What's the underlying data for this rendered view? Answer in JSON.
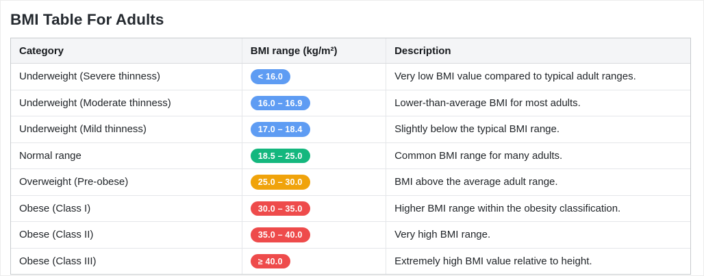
{
  "page": {
    "title": "BMI Table For Adults"
  },
  "table": {
    "columns": [
      "Category",
      "BMI range (kg/m²)",
      "Description"
    ],
    "rows": [
      {
        "category": "Underweight (Severe thinness)",
        "range": "< 16.0",
        "color": "blue",
        "description": "Very low BMI value compared to typical adult ranges."
      },
      {
        "category": "Underweight (Moderate thinness)",
        "range": "16.0 – 16.9",
        "color": "blue",
        "description": "Lower-than-average BMI for most adults."
      },
      {
        "category": "Underweight (Mild thinness)",
        "range": "17.0 – 18.4",
        "color": "blue",
        "description": "Slightly below the typical BMI range."
      },
      {
        "category": "Normal range",
        "range": "18.5 – 25.0",
        "color": "green",
        "description": "Common BMI range for many adults."
      },
      {
        "category": "Overweight (Pre-obese)",
        "range": "25.0 – 30.0",
        "color": "orange",
        "description": "BMI above the average adult range."
      },
      {
        "category": "Obese (Class I)",
        "range": "30.0 – 35.0",
        "color": "red",
        "description": "Higher BMI range within the obesity classification."
      },
      {
        "category": "Obese (Class II)",
        "range": "35.0 – 40.0",
        "color": "red",
        "description": "Very high BMI range."
      },
      {
        "category": "Obese (Class III)",
        "range": "≥ 40.0",
        "color": "red",
        "description": "Extremely high BMI value relative to height."
      }
    ]
  },
  "theme": {
    "badge_colors": {
      "blue": "#5E9CF3",
      "green": "#14B77E",
      "orange": "#F0A30B",
      "red": "#EE4B4B"
    },
    "header_bg": "#F4F5F7",
    "title_color": "#24292F",
    "text_color": "#212529",
    "outer_border": "#C7CACD",
    "inner_border": "#E4E6E9"
  }
}
